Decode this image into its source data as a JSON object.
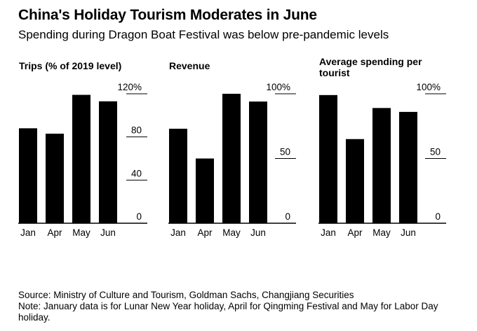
{
  "title": "China's Holiday Tourism Moderates in June",
  "subtitle": "Spending during Dragon Boat Festival was below pre-pandemic levels",
  "source": "Source: Ministry of Culture and Tourism, Goldman Sachs, Changjiang Securities",
  "note": "Note: January data is for Lunar New Year holiday, April for Qingming Festival and May for Labor Day holiday.",
  "colors": {
    "bar": "#000000",
    "axis": "#000000",
    "background": "#ffffff"
  },
  "chart_data": [
    {
      "type": "bar",
      "title": "Trips (% of 2019 level)",
      "categories": [
        "Jan",
        "Apr",
        "May",
        "Jun"
      ],
      "values": [
        88,
        83,
        119,
        113
      ],
      "ylim": [
        0,
        120
      ],
      "yticks": [
        0,
        40,
        80,
        120
      ],
      "ytick_labels": [
        "0",
        "40",
        "80",
        "120%"
      ],
      "xlabel": "",
      "ylabel": ""
    },
    {
      "type": "bar",
      "title": "Revenue",
      "categories": [
        "Jan",
        "Apr",
        "May",
        "Jun"
      ],
      "values": [
        73,
        50,
        100,
        94
      ],
      "ylim": [
        0,
        100
      ],
      "yticks": [
        0,
        50,
        100
      ],
      "ytick_labels": [
        "0",
        "50",
        "100%"
      ],
      "xlabel": "",
      "ylabel": ""
    },
    {
      "type": "bar",
      "title": "Average spending per tourist",
      "categories": [
        "Jan",
        "Apr",
        "May",
        "Jun"
      ],
      "values": [
        99,
        65,
        89,
        86
      ],
      "ylim": [
        0,
        100
      ],
      "yticks": [
        0,
        50,
        100
      ],
      "ytick_labels": [
        "0",
        "50",
        "100%"
      ],
      "xlabel": "",
      "ylabel": ""
    }
  ]
}
